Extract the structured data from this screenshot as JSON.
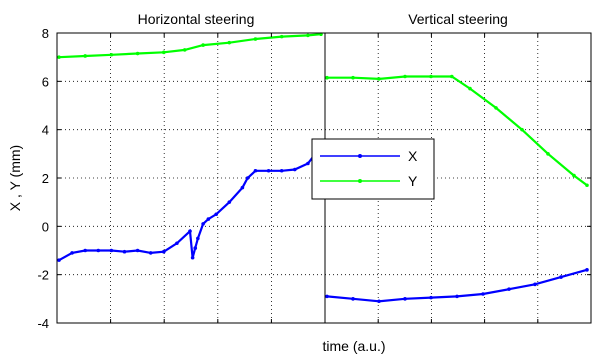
{
  "chart_data": {
    "type": "line",
    "title": "",
    "xlabel": "time (a.u.)",
    "ylabel": "X , Y (mm)",
    "ylim": [
      -4,
      8
    ],
    "yticks": [
      "-4",
      "-2",
      "0",
      "2",
      "4",
      "6",
      "8"
    ],
    "grid": true,
    "legend": {
      "placement": "center",
      "entries": [
        {
          "label": "X",
          "color": "#0000ff"
        },
        {
          "label": "Y",
          "color": "#00ff00"
        }
      ]
    },
    "panels": [
      {
        "title": "Horizontal steering",
        "xlim": [
          0,
          100
        ],
        "series": [
          {
            "name": "X",
            "color": "#0000ff",
            "x": [
              0,
              5,
              10,
              15,
              20,
              25,
              30,
              35,
              40,
              45,
              50,
              51,
              52,
              53,
              55,
              57,
              60,
              65,
              70,
              72,
              75,
              80,
              85,
              90,
              95,
              100
            ],
            "y": [
              -1.4,
              -1.1,
              -1.0,
              -1.0,
              -1.0,
              -1.05,
              -1.0,
              -1.1,
              -1.05,
              -0.7,
              -0.2,
              -1.3,
              -0.9,
              -0.5,
              0.1,
              0.3,
              0.5,
              1.0,
              1.6,
              2.0,
              2.3,
              2.3,
              2.3,
              2.35,
              2.6,
              3.3
            ]
          },
          {
            "name": "Y",
            "color": "#00ff00",
            "x": [
              0,
              10,
              20,
              30,
              40,
              48,
              55,
              65,
              75,
              85,
              95,
              100
            ],
            "y": [
              7.0,
              7.05,
              7.1,
              7.15,
              7.2,
              7.3,
              7.5,
              7.6,
              7.75,
              7.85,
              7.9,
              7.95
            ]
          }
        ]
      },
      {
        "title": "Vertical steering",
        "xlim": [
          0,
          100
        ],
        "series": [
          {
            "name": "X",
            "color": "#0000ff",
            "x": [
              0,
              10,
              20,
              30,
              40,
              50,
              60,
              70,
              80,
              90,
              100
            ],
            "y": [
              -2.9,
              -3.0,
              -3.1,
              -3.0,
              -2.95,
              -2.9,
              -2.8,
              -2.6,
              -2.4,
              -2.1,
              -1.8
            ]
          },
          {
            "name": "Y",
            "color": "#00ff00",
            "x": [
              0,
              10,
              20,
              30,
              40,
              48,
              55,
              65,
              75,
              85,
              95,
              100
            ],
            "y": [
              6.15,
              6.15,
              6.1,
              6.2,
              6.2,
              6.2,
              5.7,
              4.9,
              4.0,
              3.0,
              2.1,
              1.7
            ]
          }
        ]
      }
    ]
  }
}
